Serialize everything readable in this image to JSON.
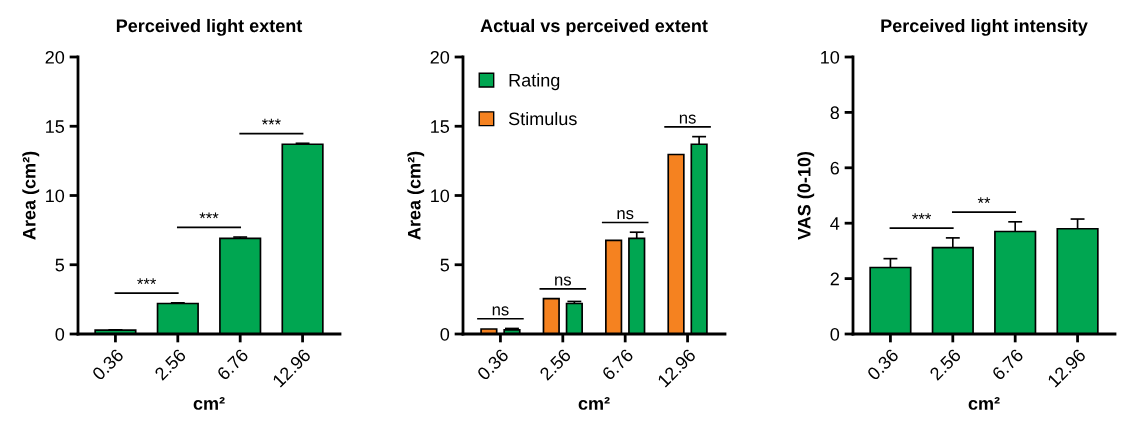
{
  "chart_data": [
    {
      "type": "bar",
      "title": "Perceived light extent",
      "xlabel": "cm²",
      "ylabel": "Area (cm²)",
      "categories": [
        "0.36",
        "2.56",
        "6.76",
        "12.96"
      ],
      "values": [
        0.28,
        2.2,
        6.9,
        13.7
      ],
      "errors": [
        0.02,
        0.05,
        0.1,
        0.07
      ],
      "color": "#00a651",
      "ylim": [
        0,
        20
      ],
      "yticks": [
        0,
        5,
        10,
        15,
        20
      ],
      "annotations": [
        "***",
        "***",
        "***"
      ],
      "grid": false,
      "legend": false
    },
    {
      "type": "bar",
      "title": "Actual vs perceived extent",
      "xlabel": "cm²",
      "ylabel": "Area (cm²)",
      "categories": [
        "0.36",
        "2.56",
        "6.76",
        "12.96"
      ],
      "series": [
        {
          "name": "Stimulus",
          "color": "#f58220",
          "values": [
            0.36,
            2.56,
            6.76,
            12.96
          ]
        },
        {
          "name": "Rating",
          "color": "#00a651",
          "values": [
            0.3,
            2.2,
            6.9,
            13.7
          ],
          "errors": [
            0.1,
            0.15,
            0.45,
            0.55
          ]
        }
      ],
      "ylim": [
        0,
        20
      ],
      "yticks": [
        0,
        5,
        10,
        15,
        20
      ],
      "annotations": [
        "ns",
        "ns",
        "ns",
        "ns"
      ],
      "grid": false,
      "legend": "top left"
    },
    {
      "type": "bar",
      "title": "Perceived light intensity",
      "xlabel": "cm²",
      "ylabel": "VAS (0-10)",
      "categories": [
        "0.36",
        "2.56",
        "6.76",
        "12.96"
      ],
      "values": [
        2.4,
        3.12,
        3.7,
        3.8
      ],
      "errors": [
        0.32,
        0.35,
        0.35,
        0.35
      ],
      "color": "#00a651",
      "ylim": [
        0,
        10
      ],
      "yticks": [
        0,
        2,
        4,
        6,
        8,
        10
      ],
      "annotations": [
        "***",
        "**"
      ],
      "grid": false,
      "legend": false
    }
  ]
}
